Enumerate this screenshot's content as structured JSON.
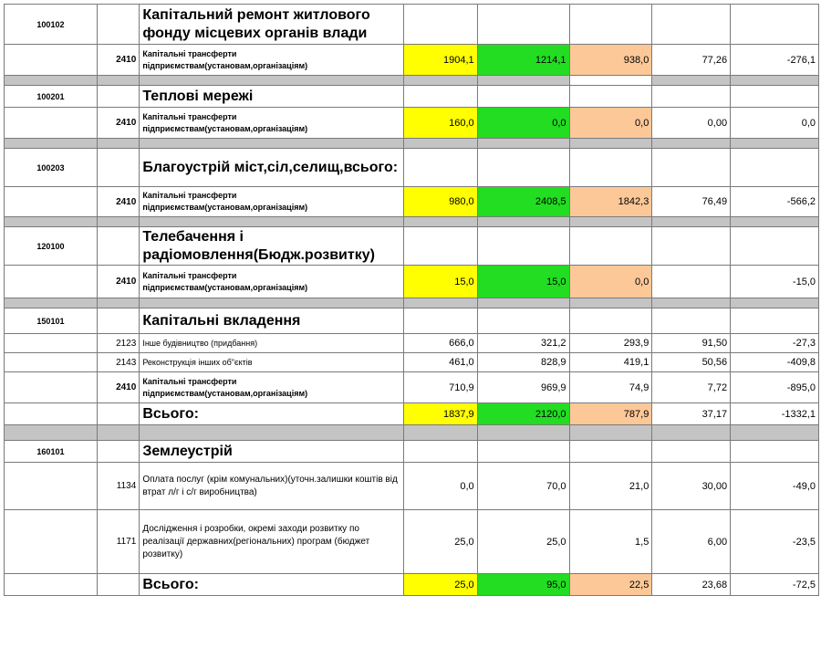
{
  "sections": [
    {
      "code": "100102",
      "title": "Капітальний ремонт житлового фонду місцевих органів влади",
      "rows": [
        {
          "kekv": "2410",
          "desc": "Капітальні трансферти підприємствам(установам,організаціям)",
          "v1": "1904,1",
          "v2": "1214,1",
          "v3": "938,0",
          "v4": "77,26",
          "v5": "-276,1"
        }
      ]
    },
    {
      "code": "100201",
      "title": "Теплові мережі",
      "rows": [
        {
          "kekv": "2410",
          "desc": "Капітальні трансферти підприємствам(установам,організаціям)",
          "v1": "160,0",
          "v2": "0,0",
          "v3": "0,0",
          "v4": "0,00",
          "v5": "0,0"
        }
      ]
    },
    {
      "code": "100203",
      "title": "Благоустрій міст,сіл,селищ,всього:",
      "rows": [
        {
          "kekv": "2410",
          "desc": "Капітальні трансферти підприємствам(установам,організаціям)",
          "v1": "980,0",
          "v2": "2408,5",
          "v3": "1842,3",
          "v4": "76,49",
          "v5": "-566,2"
        }
      ]
    },
    {
      "code": "120100",
      "title": "Телебачення і радіомовлення(Бюдж.розвитку)",
      "rows": [
        {
          "kekv": "2410",
          "desc": "Капітальні трансферти підприємствам(установам,організаціям)",
          "v1": "15,0",
          "v2": "15,0",
          "v3": "0,0",
          "v4": "",
          "v5": "-15,0"
        }
      ]
    },
    {
      "code": "150101",
      "title": "Капітальні вкладення",
      "rows": [
        {
          "kekv": "2123",
          "desc": "Інше будівництво (придбання)",
          "v1": "666,0",
          "v2": "321,2",
          "v3": "293,9",
          "v4": "91,50",
          "v5": "-27,3"
        },
        {
          "kekv": "2143",
          "desc": "Реконструкція інших об\"єктів",
          "v1": "461,0",
          "v2": "828,9",
          "v3": "419,1",
          "v4": "50,56",
          "v5": "-409,8"
        },
        {
          "kekv": "2410",
          "desc": "Капітальні трансферти підприємствам(установам,організаціям)",
          "v1": "710,9",
          "v2": "969,9",
          "v3": "74,9",
          "v4": "7,72",
          "v5": "-895,0"
        }
      ],
      "total": {
        "label": "Всього:",
        "v1": "1837,9",
        "v2": "2120,0",
        "v3": "787,9",
        "v4": "37,17",
        "v5": "-1332,1"
      }
    },
    {
      "code": "160101",
      "title": "Землеустрій",
      "rows": [
        {
          "kekv": "1134",
          "desc": "Оплата послуг (крім комунальних)(уточн.залишки коштів від втрат л/г і с/г виробництва)",
          "v1": "0,0",
          "v2": "70,0",
          "v3": "21,0",
          "v4": "30,00",
          "v5": "-49,0"
        },
        {
          "kekv": "1171",
          "desc": "Дослідження і розробки, окремі заходи розвитку по реалізації державних(регіональних) програм (бюджет розвитку)",
          "v1": "25,0",
          "v2": "25,0",
          "v3": "1,5",
          "v4": "6,00",
          "v5": "-23,5"
        }
      ],
      "total": {
        "label": "Всього:",
        "v1": "25,0",
        "v2": "95,0",
        "v3": "22,5",
        "v4": "23,68",
        "v5": "-72,5"
      }
    }
  ],
  "colors": {
    "yellow": "#ffff00",
    "green": "#22dd22",
    "peach": "#fdc898",
    "separator": "#c4c4c4"
  }
}
